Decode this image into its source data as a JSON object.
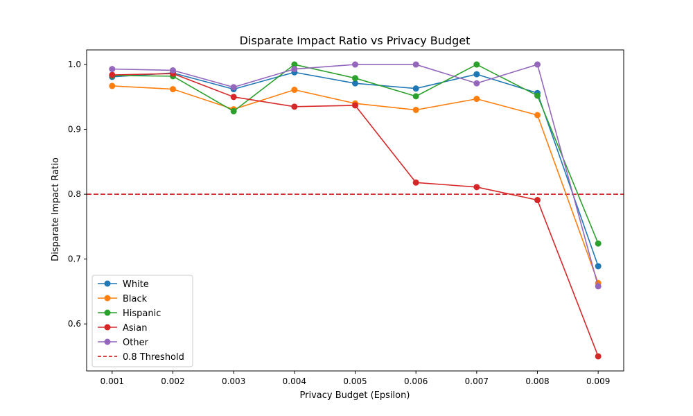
{
  "chart_data": {
    "type": "line",
    "title": "Disparate Impact Ratio vs Privacy Budget",
    "xlabel": "Privacy Budget (Epsilon)",
    "ylabel": "Disparate Impact Ratio",
    "x": [
      0.001,
      0.002,
      0.003,
      0.004,
      0.005,
      0.006,
      0.007,
      0.008,
      0.009
    ],
    "x_tick_labels": [
      "0.001",
      "0.002",
      "0.003",
      "0.004",
      "0.005",
      "0.006",
      "0.007",
      "0.008",
      "0.009"
    ],
    "y_ticks": [
      0.6,
      0.7,
      0.8,
      0.9,
      1.0
    ],
    "y_tick_labels": [
      "0.6",
      "0.7",
      "0.8",
      "0.9",
      "1.0"
    ],
    "xlim": [
      0.00058,
      0.00942
    ],
    "ylim": [
      0.5275,
      1.0225
    ],
    "series": [
      {
        "name": "White",
        "color": "#1f77b4",
        "values": [
          0.981,
          0.987,
          0.962,
          0.988,
          0.971,
          0.963,
          0.985,
          0.956,
          0.689
        ]
      },
      {
        "name": "Black",
        "color": "#ff7f0e",
        "values": [
          0.967,
          0.962,
          0.931,
          0.961,
          0.94,
          0.93,
          0.947,
          0.922,
          0.663
        ]
      },
      {
        "name": "Hispanic",
        "color": "#2ca02c",
        "values": [
          0.983,
          0.982,
          0.928,
          1.0,
          0.979,
          0.951,
          1.0,
          0.952,
          0.724
        ]
      },
      {
        "name": "Asian",
        "color": "#d62728",
        "values": [
          0.984,
          0.986,
          0.95,
          0.935,
          0.937,
          0.818,
          0.811,
          0.791,
          0.55
        ]
      },
      {
        "name": "Other",
        "color": "#9467bd",
        "values": [
          0.993,
          0.991,
          0.965,
          0.993,
          1.0,
          1.0,
          0.971,
          1.0,
          0.658
        ]
      }
    ],
    "threshold": {
      "name": "0.8 Threshold",
      "value": 0.8,
      "color": "#d62728",
      "style": "dashed"
    },
    "legend_position": "lower-left",
    "grid": false
  }
}
